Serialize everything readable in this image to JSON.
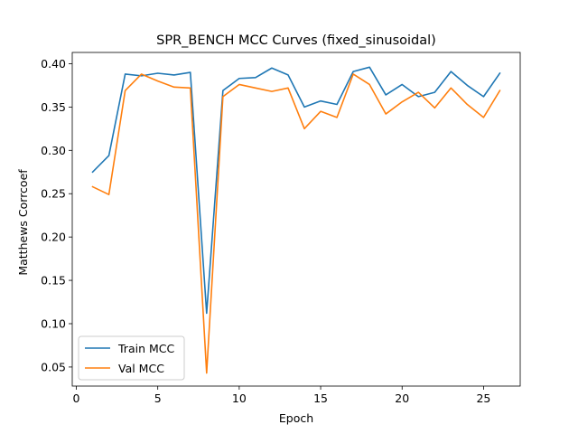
{
  "chart_data": {
    "type": "line",
    "title": "SPR_BENCH MCC Curves (fixed_sinusoidal)",
    "xlabel": "Epoch",
    "ylabel": "Matthews Corrcoef",
    "xlim": [
      -0.25,
      27.25
    ],
    "ylim": [
      0.028,
      0.413
    ],
    "xticks": [
      0,
      5,
      10,
      15,
      20,
      25
    ],
    "yticks": [
      0.05,
      0.1,
      0.15,
      0.2,
      0.25,
      0.3,
      0.35,
      0.4
    ],
    "ytick_labels": [
      "0.05",
      "0.10",
      "0.15",
      "0.20",
      "0.25",
      "0.30",
      "0.35",
      "0.40"
    ],
    "grid": false,
    "legend_position": "lower-left",
    "x": [
      1,
      2,
      3,
      4,
      5,
      6,
      7,
      8,
      9,
      10,
      11,
      12,
      13,
      14,
      15,
      16,
      17,
      18,
      19,
      20,
      21,
      22,
      23,
      24,
      25,
      26
    ],
    "series": [
      {
        "name": "Train MCC",
        "color": "#1f77b4",
        "values": [
          0.275,
          0.294,
          0.388,
          0.386,
          0.389,
          0.387,
          0.39,
          0.112,
          0.369,
          0.383,
          0.384,
          0.395,
          0.387,
          0.35,
          0.357,
          0.353,
          0.391,
          0.396,
          0.364,
          0.376,
          0.362,
          0.367,
          0.391,
          0.375,
          0.362,
          0.389
        ]
      },
      {
        "name": "Val MCC",
        "color": "#ff7f0e",
        "values": [
          0.258,
          0.249,
          0.369,
          0.388,
          0.38,
          0.373,
          0.372,
          0.043,
          0.362,
          0.376,
          0.372,
          0.368,
          0.372,
          0.325,
          0.345,
          0.338,
          0.388,
          0.376,
          0.342,
          0.356,
          0.367,
          0.349,
          0.372,
          0.353,
          0.338,
          0.369
        ]
      }
    ]
  }
}
